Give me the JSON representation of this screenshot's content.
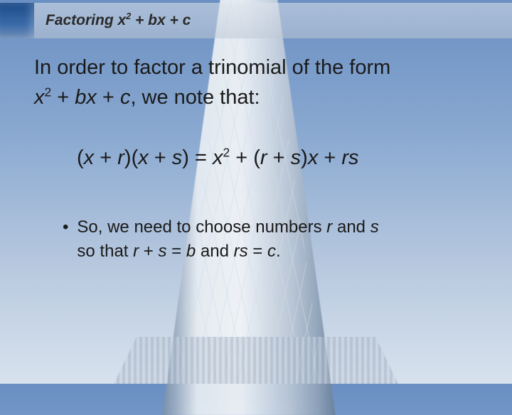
{
  "colors": {
    "sky_top": "#6a8fc2",
    "sky_bottom": "#d8e2ee",
    "building_light": "#f2f5f8",
    "building_shadow": "#6b8099",
    "thumb_bg": "#1b4a88",
    "text": "#1a1a1a",
    "header_overlay": "rgba(210,218,228,0.55)"
  },
  "typography": {
    "title_fontsize": 21,
    "body_fontsize": 29,
    "bullet_fontsize": 24,
    "font_family": "Arial"
  },
  "header": {
    "title_prefix": "Factoring ",
    "title_expr_x": "x",
    "title_expr_sup": "2",
    "title_expr_rest": " + bx + c"
  },
  "intro": {
    "line1": "In order to factor a trinomial of the form",
    "expr_x": "x",
    "expr_sup": "2",
    "expr_mid": " + ",
    "expr_bx": "bx",
    "expr_plus": " + ",
    "expr_c": "c",
    "line1_end": ", we note that:"
  },
  "equation": {
    "p1": "(",
    "x1": "x",
    "p2": " + ",
    "r1": "r",
    "p3": ")(",
    "x2": "x",
    "p4": " + ",
    "s1": "s",
    "p5": ") = ",
    "x3": "x",
    "sup": "2",
    "p6": " + (",
    "r2": "r",
    "p7": " + ",
    "s2": "s",
    "p8": ")",
    "x4": "x",
    "p9": " + ",
    "rs": "rs"
  },
  "bullet": {
    "dot": "•",
    "t1": "So, we need to choose numbers ",
    "r": "r",
    "t2": " and ",
    "s": "s",
    "t3": "so that ",
    "r2": "r",
    "t4": " + ",
    "s2": "s",
    "t5": " = ",
    "b": "b",
    "t6": " and ",
    "rs": "rs",
    "t7": " = ",
    "c": "c",
    "t8": "."
  }
}
